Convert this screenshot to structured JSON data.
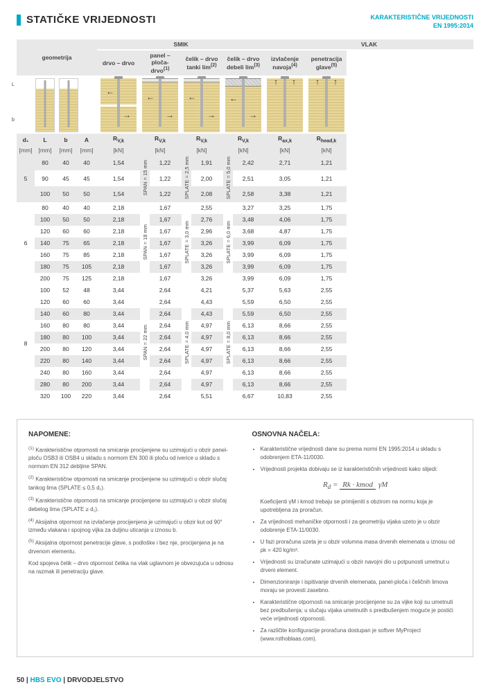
{
  "header": {
    "title": "STATIČKE VRIJEDNOSTI",
    "karak": "KARAKTERISTIČNE VRIJEDNOSTI",
    "norm": "EN 1995:2014"
  },
  "top": {
    "geom": "geometrija",
    "smik": "SMIK",
    "vlak": "VLAK",
    "c1": "drvo – drvo",
    "c2": "panel – ploča-drvo",
    "c2sup": "(1)",
    "c3": "čelik – drvo tanki lim",
    "c3sup": "(2)",
    "c4": "čelik – drvo debeli lim",
    "c4sup": "(3)",
    "c5": "izvlačenje navoja",
    "c5sup": "(4)",
    "c6": "penetracija glave",
    "c6sup": "(5)"
  },
  "sub": {
    "d1": "d₁",
    "L": "L",
    "b": "b",
    "A": "A",
    "rvk": "R",
    "rvk_sub": "V,k",
    "rax": "R",
    "rax_sub": "ax,k",
    "rhead": "R",
    "rhead_sub": "head,k",
    "mm": "[mm]",
    "kn": "[kN]"
  },
  "vlabels": {
    "span15": "SPAN = 15 mm",
    "span18": "SPAN = 18 mm",
    "span22": "SPAN = 22 mm",
    "plate25": "SPLATE = 2,5 mm",
    "plate30": "SPLATE = 3,0 mm",
    "plate40": "SPLATE = 4,0 mm",
    "plate50": "SPLATE = 5,0 mm",
    "plate60": "SPLATE = 6,0 mm",
    "plate80": "SPLATE = 8,0 mm"
  },
  "groups": [
    {
      "d1": "5",
      "rows": [
        {
          "L": "80",
          "b": "40",
          "A": "40",
          "rvk1": "1,54",
          "rvk2": "1,22",
          "rvk3": "1,91",
          "rvk4": "2,42",
          "rax": "2,71",
          "rhead": "1,21",
          "dark": true
        },
        {
          "L": "90",
          "b": "45",
          "A": "45",
          "rvk1": "1,54",
          "rvk2": "1,22",
          "rvk3": "2,00",
          "rvk4": "2,51",
          "rax": "3,05",
          "rhead": "1,21",
          "dark": false
        },
        {
          "L": "100",
          "b": "50",
          "A": "50",
          "rvk1": "1,54",
          "rvk2": "1,22",
          "rvk3": "2,08",
          "rvk4": "2,58",
          "rax": "3,38",
          "rhead": "1,21",
          "dark": true
        }
      ]
    },
    {
      "d1": "6",
      "rows": [
        {
          "L": "80",
          "b": "40",
          "A": "40",
          "rvk1": "2,18",
          "rvk2": "1,67",
          "rvk3": "2,55",
          "rvk4": "3,27",
          "rax": "3,25",
          "rhead": "1,75",
          "dark": false
        },
        {
          "L": "100",
          "b": "50",
          "A": "50",
          "rvk1": "2,18",
          "rvk2": "1,67",
          "rvk3": "2,76",
          "rvk4": "3,48",
          "rax": "4,06",
          "rhead": "1,75",
          "dark": true
        },
        {
          "L": "120",
          "b": "60",
          "A": "60",
          "rvk1": "2,18",
          "rvk2": "1,67",
          "rvk3": "2,96",
          "rvk4": "3,68",
          "rax": "4,87",
          "rhead": "1,75",
          "dark": false
        },
        {
          "L": "140",
          "b": "75",
          "A": "65",
          "rvk1": "2,18",
          "rvk2": "1,67",
          "rvk3": "3,26",
          "rvk4": "3,99",
          "rax": "6,09",
          "rhead": "1,75",
          "dark": true
        },
        {
          "L": "160",
          "b": "75",
          "A": "85",
          "rvk1": "2,18",
          "rvk2": "1,67",
          "rvk3": "3,26",
          "rvk4": "3,99",
          "rax": "6,09",
          "rhead": "1,75",
          "dark": false
        },
        {
          "L": "180",
          "b": "75",
          "A": "105",
          "rvk1": "2,18",
          "rvk2": "1,67",
          "rvk3": "3,26",
          "rvk4": "3,99",
          "rax": "6,09",
          "rhead": "1,75",
          "dark": true
        },
        {
          "L": "200",
          "b": "75",
          "A": "125",
          "rvk1": "2,18",
          "rvk2": "1,67",
          "rvk3": "3,26",
          "rvk4": "3,99",
          "rax": "6,09",
          "rhead": "1,75",
          "dark": false
        }
      ]
    },
    {
      "d1": "8",
      "rows": [
        {
          "L": "100",
          "b": "52",
          "A": "48",
          "rvk1": "3,44",
          "rvk2": "2,64",
          "rvk3": "4,21",
          "rvk4": "5,37",
          "rax": "5,63",
          "rhead": "2,55",
          "dark": false
        },
        {
          "L": "120",
          "b": "60",
          "A": "60",
          "rvk1": "3,44",
          "rvk2": "2,64",
          "rvk3": "4,43",
          "rvk4": "5,59",
          "rax": "6,50",
          "rhead": "2,55",
          "dark": false
        },
        {
          "L": "140",
          "b": "60",
          "A": "80",
          "rvk1": "3,44",
          "rvk2": "2,64",
          "rvk3": "4,43",
          "rvk4": "5,59",
          "rax": "6,50",
          "rhead": "2,55",
          "dark": true
        },
        {
          "L": "160",
          "b": "80",
          "A": "80",
          "rvk1": "3,44",
          "rvk2": "2,64",
          "rvk3": "4,97",
          "rvk4": "6,13",
          "rax": "8,66",
          "rhead": "2,55",
          "dark": false
        },
        {
          "L": "180",
          "b": "80",
          "A": "100",
          "rvk1": "3,44",
          "rvk2": "2,64",
          "rvk3": "4,97",
          "rvk4": "6,13",
          "rax": "8,66",
          "rhead": "2,55",
          "dark": true
        },
        {
          "L": "200",
          "b": "80",
          "A": "120",
          "rvk1": "3,44",
          "rvk2": "2,64",
          "rvk3": "4,97",
          "rvk4": "6,13",
          "rax": "8,66",
          "rhead": "2,55",
          "dark": false
        },
        {
          "L": "220",
          "b": "80",
          "A": "140",
          "rvk1": "3,44",
          "rvk2": "2,64",
          "rvk3": "4,97",
          "rvk4": "6,13",
          "rax": "8,66",
          "rhead": "2,55",
          "dark": true
        },
        {
          "L": "240",
          "b": "80",
          "A": "160",
          "rvk1": "3,44",
          "rvk2": "2,64",
          "rvk3": "4,97",
          "rvk4": "6,13",
          "rax": "8,66",
          "rhead": "2,55",
          "dark": false
        },
        {
          "L": "280",
          "b": "80",
          "A": "200",
          "rvk1": "3,44",
          "rvk2": "2,64",
          "rvk3": "4,97",
          "rvk4": "6,13",
          "rax": "8,66",
          "rhead": "2,55",
          "dark": true
        },
        {
          "L": "320",
          "b": "100",
          "A": "220",
          "rvk1": "3,44",
          "rvk2": "2,64",
          "rvk3": "5,51",
          "rvk4": "6,67",
          "rax": "10,83",
          "rhead": "2,55",
          "dark": false
        }
      ]
    }
  ],
  "notes": {
    "nap": "NAPOMENE:",
    "n1": "Karakteristične otpornosti na smicanje procijenjene su uzimajući u obzir panel-ploču OSB3 ili OSB4 u skladu s normom EN 300 ili ploču od iverice u skladu s normom EN 312 debljine SPAN.",
    "n2": "Karakteristične otpornosti na smicanje procijenjene su uzimajući u obzir slučaj tankog lima (SPLATE ≤ 0,5 d₁).",
    "n3": "Karakteristične otpornosti na smicanje procijenjene su uzimajući u obzir slučaj debelog lima (SPLATE ≥ d₁).",
    "n4": "Aksijalna otpornost na izvlačenje procijenjena je uzimajući u obzir kut od 90° između vlakana i spojnog vijka za duljinu uticanja u iznosu b.",
    "n5": "Aksijalna otpornost penetracije glave, s podloške i bez nje, procijenjena je na drvenom elementu.",
    "nkod": "Kod spojeva čelik – drvo otpornost čelika na vlak uglavnom je obvezujuća u odnosu na razmak ili penetraciju glave.",
    "osn": "OSNOVNA NAČELA:",
    "o1": "Karakteristične vrijednosti dane su prema normi EN 1995:2014 u skladu s odobrenjem ETA-11/0030.",
    "o2": "Vrijednosti projekta dobivaju se iz karakterističnih vrijednosti kako slijedi:",
    "o3": "Koeficijenti γM i kmod trebaju se primijeniti s obzirom na normu koja je upotrebljena za proračun.",
    "o4": "Za vrijednosti mehaničke otpornosti i za geometriju vijaka uzeto je u obzir odobrenje ETA-11/0030.",
    "o5": "U fazi proračuna uzeta je u obzir volumna masa drvenih elemenata u iznosu od ρk = 420 kg/m³.",
    "o6": "Vrijednosti su izračunate uzimajući u obzir navojni dio u potpunosti umetnut u drveni element.",
    "o7": "Dimenzioniranje i ispitivanje drvenih elemenata, panel-ploča i čeličnih limova moraju se provesti zasebno.",
    "o8": "Karakteristične otpornosti na smicanje procijenjene su za vijke koji su umetnuti bez predbušenja; u slučaju vijaka umetnutih s predbušenjem moguće je postići veće vrijednosti otpornosti.",
    "o9": "Za različite konfiguracije proračuna dostupan je softver MyProject (www.rothoblaas.com).",
    "formula": {
      "Rd": "R",
      "d": "d",
      "eq": " = ",
      "num": "Rk · kmod",
      "den": "γM"
    }
  },
  "footer": {
    "page": "50",
    "sep": " | ",
    "product": "HBS EVO",
    "cat": "DRVODJELSTVO"
  }
}
